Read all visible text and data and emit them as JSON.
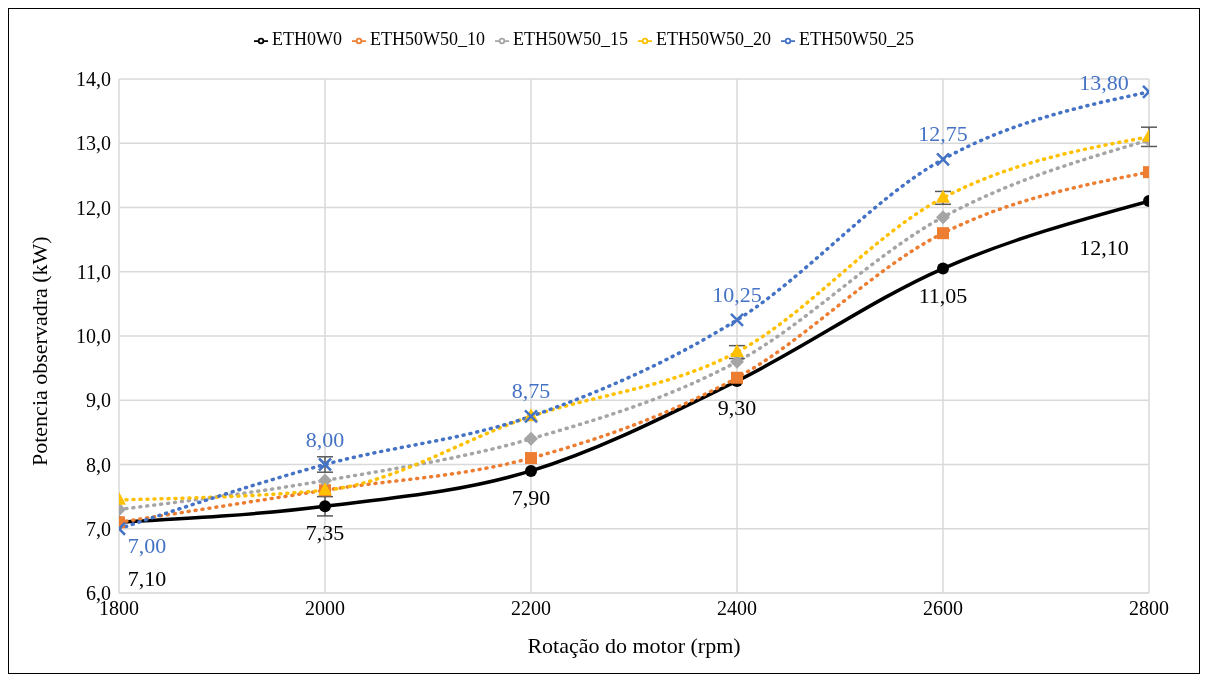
{
  "chart_data": {
    "type": "line",
    "xlabel": "Rotação do motor (rpm)",
    "ylabel": "Potencia observadra (kW)",
    "x": [
      1800,
      2000,
      2200,
      2400,
      2600,
      2800
    ],
    "xlim": [
      1800,
      2800
    ],
    "xticks": [
      1800,
      2000,
      2200,
      2400,
      2600,
      2800
    ],
    "ylim": [
      6,
      14
    ],
    "yticks": [
      {
        "value": 6,
        "label": "6,0"
      },
      {
        "value": 7,
        "label": "7,0"
      },
      {
        "value": 8,
        "label": "8,0"
      },
      {
        "value": 9,
        "label": "9,0"
      },
      {
        "value": 10,
        "label": "10,0"
      },
      {
        "value": 11,
        "label": "11,0"
      },
      {
        "value": 12,
        "label": "12,0"
      },
      {
        "value": 13,
        "label": "13,0"
      },
      {
        "value": 14,
        "label": "14,0"
      }
    ],
    "grid": true,
    "legend": "top",
    "series": [
      {
        "name": "ETH0W0",
        "color": "#000000",
        "values": [
          7.1,
          7.35,
          7.9,
          9.3,
          11.05,
          12.1
        ],
        "marker": "circle",
        "line_style": "solid",
        "value_labels": [
          "7,10",
          "7,35",
          "7,90",
          "9,30",
          "11,05",
          "12,10"
        ],
        "errors": [
          null,
          0.15,
          null,
          null,
          null,
          null
        ]
      },
      {
        "name": "ETH50W50_10",
        "color": "#ed7d31",
        "values": [
          7.1,
          7.6,
          8.1,
          9.35,
          11.6,
          12.55
        ],
        "marker": "square",
        "line_style": "dotted"
      },
      {
        "name": "ETH50W50_15",
        "color": "#a5a5a5",
        "values": [
          7.3,
          7.75,
          8.4,
          9.6,
          11.85,
          13.05
        ],
        "marker": "diamond",
        "line_style": "dotted"
      },
      {
        "name": "ETH50W50_20",
        "color": "#ffc000",
        "values": [
          7.45,
          7.6,
          8.75,
          9.75,
          12.15,
          13.1
        ],
        "marker": "triangle",
        "line_style": "dotted",
        "errors": [
          null,
          null,
          null,
          0.1,
          0.1,
          0.15
        ]
      },
      {
        "name": "ETH50W50_25",
        "color": "#4472c4",
        "values": [
          7.0,
          8.0,
          8.75,
          10.25,
          12.75,
          13.8
        ],
        "marker": "cross",
        "line_style": "dotted",
        "value_labels": [
          "7,00",
          "8,00",
          "8,75",
          "10,25",
          "12,75",
          "13,80"
        ],
        "errors": [
          null,
          0.12,
          null,
          null,
          null,
          null
        ]
      }
    ]
  }
}
